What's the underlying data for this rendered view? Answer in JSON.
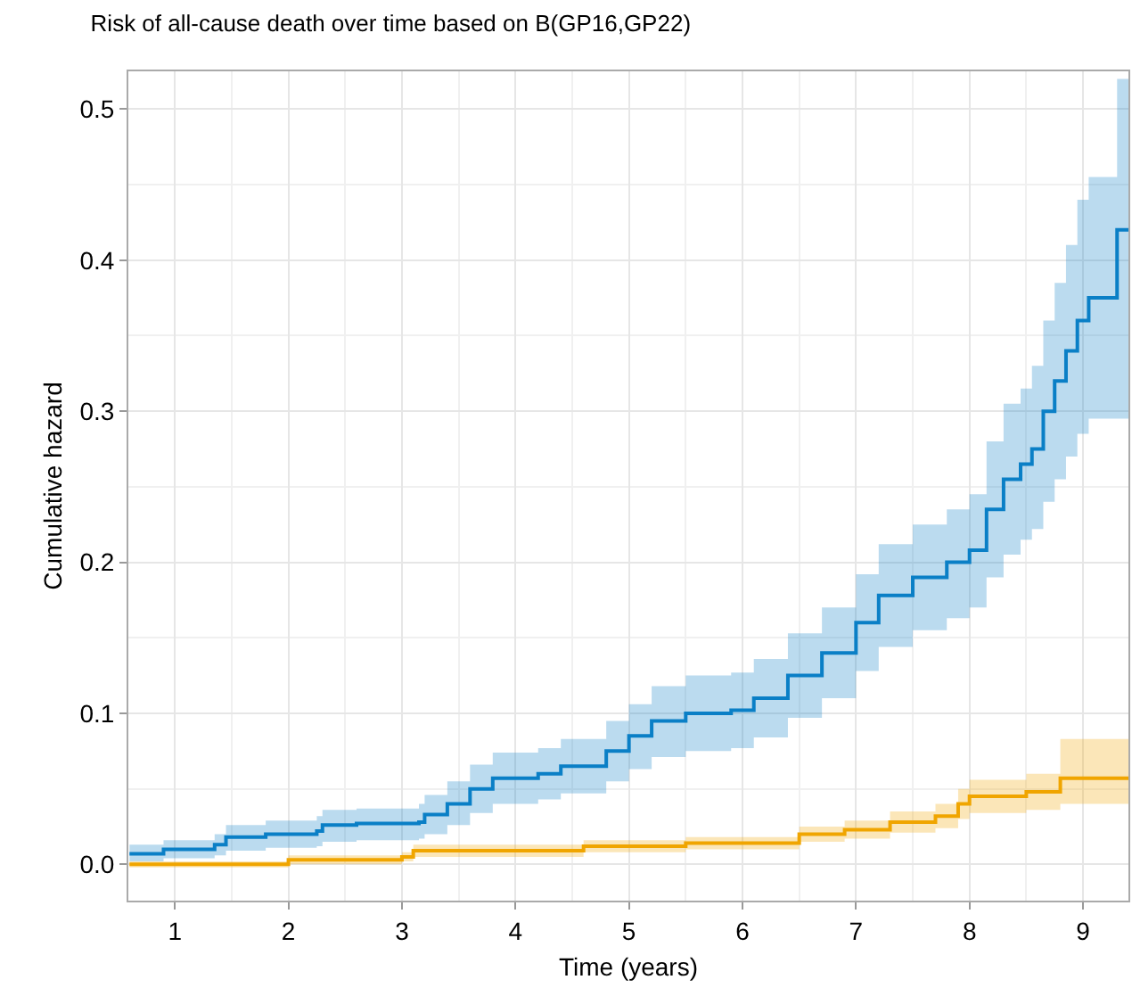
{
  "chart_data": {
    "type": "step",
    "title": "Risk of all-cause death over time based on B(GP16,GP22)",
    "xlabel": "Time (years)",
    "ylabel": "Cumulative hazard",
    "xlim": [
      0.59,
      9.4
    ],
    "ylim": [
      -0.024,
      0.525
    ],
    "xticks": [
      1,
      2,
      3,
      4,
      5,
      6,
      7,
      8,
      9
    ],
    "yticks": [
      {
        "value": 0,
        "label": "0.0"
      },
      0.1,
      0.2,
      0.3,
      0.4,
      0.5
    ],
    "grid": true,
    "series": [
      {
        "color": "#0a7fc6",
        "x": [
          0.6,
          0.9,
          1.35,
          1.45,
          1.8,
          2.25,
          2.3,
          2.6,
          3.15,
          3.2,
          3.4,
          3.6,
          3.8,
          4.2,
          4.4,
          4.8,
          5.0,
          5.2,
          5.5,
          5.9,
          6.1,
          6.4,
          6.7,
          7.0,
          7.2,
          7.5,
          7.8,
          8.0,
          8.15,
          8.3,
          8.45,
          8.55,
          8.65,
          8.75,
          8.85,
          8.95,
          9.05,
          9.3,
          9.4
        ],
        "values": [
          0.007,
          0.01,
          0.013,
          0.018,
          0.02,
          0.022,
          0.026,
          0.027,
          0.028,
          0.033,
          0.04,
          0.05,
          0.057,
          0.06,
          0.065,
          0.075,
          0.085,
          0.095,
          0.1,
          0.102,
          0.11,
          0.125,
          0.14,
          0.16,
          0.178,
          0.19,
          0.2,
          0.208,
          0.235,
          0.255,
          0.265,
          0.275,
          0.3,
          0.32,
          0.34,
          0.36,
          0.375,
          0.42,
          0.42
        ],
        "lower": [
          0.002,
          0.004,
          0.006,
          0.009,
          0.011,
          0.012,
          0.015,
          0.016,
          0.017,
          0.02,
          0.026,
          0.034,
          0.04,
          0.043,
          0.047,
          0.055,
          0.063,
          0.071,
          0.075,
          0.077,
          0.084,
          0.097,
          0.11,
          0.128,
          0.144,
          0.155,
          0.163,
          0.17,
          0.19,
          0.205,
          0.215,
          0.222,
          0.24,
          0.255,
          0.27,
          0.285,
          0.295,
          0.295,
          0.295
        ],
        "upper": [
          0.013,
          0.016,
          0.02,
          0.026,
          0.029,
          0.032,
          0.036,
          0.037,
          0.04,
          0.046,
          0.055,
          0.066,
          0.074,
          0.077,
          0.083,
          0.095,
          0.106,
          0.118,
          0.125,
          0.127,
          0.136,
          0.153,
          0.17,
          0.192,
          0.212,
          0.225,
          0.235,
          0.245,
          0.28,
          0.305,
          0.315,
          0.33,
          0.36,
          0.385,
          0.41,
          0.44,
          0.455,
          0.52,
          0.52
        ]
      },
      {
        "color": "#f0a500",
        "x": [
          0.6,
          2.0,
          3.0,
          3.1,
          4.6,
          5.5,
          6.5,
          6.9,
          7.3,
          7.7,
          7.9,
          8.0,
          8.5,
          8.8,
          9.4
        ],
        "values": [
          0.0,
          0.003,
          0.005,
          0.009,
          0.012,
          0.014,
          0.02,
          0.023,
          0.028,
          0.032,
          0.04,
          0.045,
          0.048,
          0.057,
          0.057
        ],
        "lower": [
          -0.002,
          0.0,
          0.002,
          0.005,
          0.008,
          0.01,
          0.015,
          0.017,
          0.021,
          0.024,
          0.03,
          0.034,
          0.036,
          0.04,
          0.04
        ],
        "upper": [
          0.002,
          0.006,
          0.008,
          0.013,
          0.016,
          0.018,
          0.025,
          0.029,
          0.035,
          0.04,
          0.05,
          0.056,
          0.06,
          0.083,
          0.083
        ]
      }
    ]
  }
}
